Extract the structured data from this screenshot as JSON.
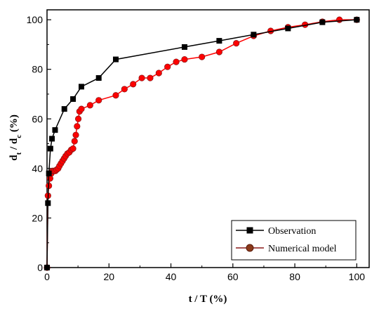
{
  "chart_data": {
    "type": "line",
    "xlabel": "t / T (%)",
    "ylabel": {
      "base1": "d",
      "sub1": "t",
      "mid": " / d",
      "sub2": "c",
      "tail": " (%)"
    },
    "xlim": [
      0,
      104
    ],
    "ylim": [
      0,
      104
    ],
    "xticks": [
      "0",
      "20",
      "40",
      "60",
      "80",
      "100"
    ],
    "yticks": [
      "0",
      "20",
      "40",
      "60",
      "80",
      "100"
    ],
    "legend_position": "bottom-right",
    "grid": false,
    "series": [
      {
        "name": "Observation",
        "color": "#000000",
        "marker": "square",
        "x": [
          0,
          0.3,
          0.6,
          1.1,
          1.6,
          2.6,
          5.6,
          8.4,
          11.1,
          16.7,
          22.2,
          44.4,
          55.6,
          66.7,
          77.8,
          88.9,
          100
        ],
        "y": [
          0,
          26,
          38,
          48,
          52,
          55.5,
          64,
          68,
          73,
          76.5,
          84,
          89,
          91.5,
          94,
          96.5,
          99,
          100
        ]
      },
      {
        "name": "Numerical model",
        "color": "#ff0000",
        "edgecolor": "#8b1a1a",
        "marker": "circle",
        "x": [
          0,
          0.3,
          0.6,
          1.0,
          1.4,
          1.8,
          2.2,
          2.7,
          3.1,
          3.6,
          4.0,
          4.5,
          5.0,
          5.5,
          6.0,
          6.6,
          7.2,
          7.8,
          8.4,
          8.9,
          9.3,
          9.7,
          10.1,
          10.5,
          11.1,
          13.9,
          16.7,
          22.2,
          25.0,
          27.8,
          30.6,
          33.3,
          36.1,
          38.9,
          41.7,
          44.4,
          50.0,
          55.6,
          61.1,
          66.7,
          72.2,
          77.8,
          83.3,
          88.9,
          94.4,
          100
        ],
        "y": [
          0,
          29,
          33,
          36,
          38,
          39,
          39,
          39,
          39.5,
          40,
          41,
          42,
          43,
          44,
          45,
          46,
          46.5,
          47.5,
          48,
          51,
          53.5,
          57,
          60,
          63,
          64,
          65.5,
          67.5,
          69.5,
          72,
          74,
          76.5,
          76.5,
          78.5,
          81,
          83,
          84,
          85,
          87,
          90.5,
          93.5,
          95.5,
          97,
          98,
          99.2,
          100,
          100
        ]
      }
    ]
  }
}
